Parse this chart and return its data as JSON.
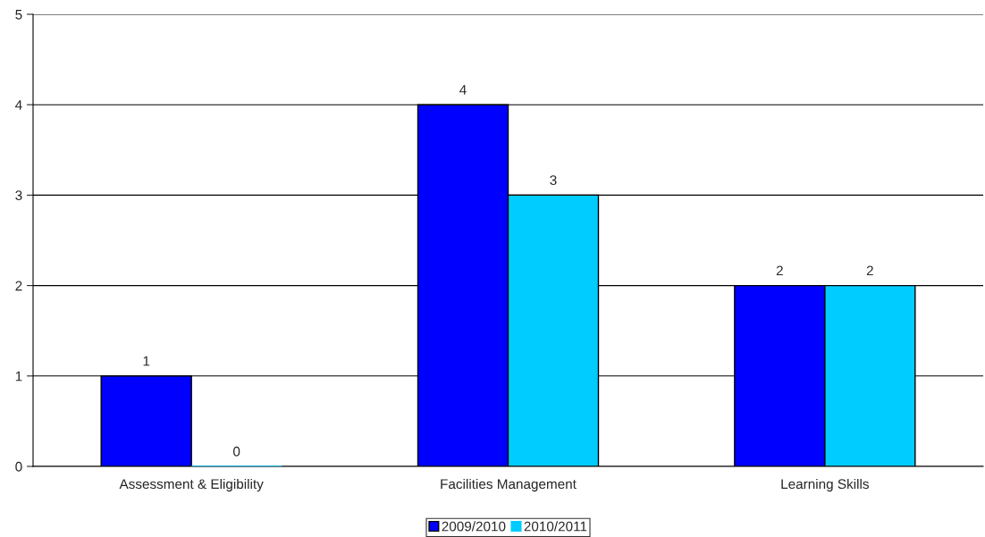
{
  "chart_data": {
    "type": "bar",
    "categories": [
      "Assessment & Eligibility",
      "Facilities Management",
      "Learning Skills"
    ],
    "series": [
      {
        "name": "2009/2010",
        "color": "#0000ff",
        "values": [
          1,
          4,
          2
        ]
      },
      {
        "name": "2010/2011",
        "color": "#00ccff",
        "values": [
          0,
          3,
          2
        ]
      }
    ],
    "ylim": [
      0,
      5
    ],
    "yticks": [
      0,
      1,
      2,
      3,
      4,
      5
    ],
    "grid": "y",
    "legend": "bottom",
    "data_labels": true
  }
}
